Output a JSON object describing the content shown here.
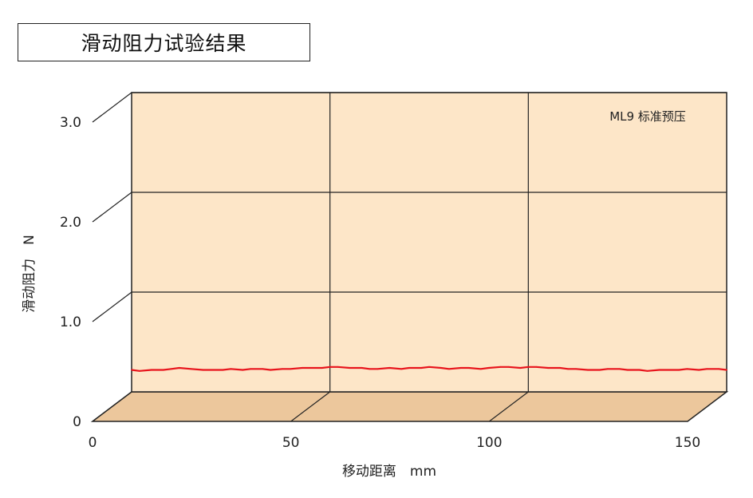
{
  "chart_data": {
    "type": "line",
    "title": "滑动阻力试验结果",
    "annotation": "ML9 标准预压",
    "xlabel": "移动距离　mm",
    "ylabel": "滑动阻力　N",
    "xlim": [
      0,
      150
    ],
    "ylim": [
      0,
      3.0
    ],
    "x_ticks": [
      "0",
      "50",
      "100",
      "150"
    ],
    "y_ticks": [
      "0",
      "1.0",
      "2.0",
      "3.0"
    ],
    "grid": true,
    "series": [
      {
        "color": "#e8141c",
        "x": [
          0,
          2,
          5,
          8,
          10,
          12,
          15,
          18,
          20,
          23,
          25,
          28,
          30,
          33,
          35,
          38,
          40,
          43,
          45,
          48,
          50,
          52,
          55,
          58,
          60,
          62,
          65,
          68,
          70,
          73,
          75,
          78,
          80,
          83,
          85,
          88,
          90,
          93,
          95,
          98,
          100,
          102,
          105,
          108,
          110,
          112,
          115,
          118,
          120,
          123,
          125,
          128,
          130,
          133,
          135,
          138,
          140,
          143,
          145,
          148,
          150
        ],
        "values": [
          0.22,
          0.21,
          0.22,
          0.22,
          0.23,
          0.24,
          0.23,
          0.22,
          0.22,
          0.22,
          0.23,
          0.22,
          0.23,
          0.23,
          0.22,
          0.23,
          0.23,
          0.24,
          0.24,
          0.24,
          0.25,
          0.25,
          0.24,
          0.24,
          0.23,
          0.23,
          0.24,
          0.23,
          0.24,
          0.24,
          0.25,
          0.24,
          0.23,
          0.24,
          0.24,
          0.23,
          0.24,
          0.25,
          0.25,
          0.24,
          0.25,
          0.25,
          0.24,
          0.24,
          0.23,
          0.23,
          0.22,
          0.22,
          0.23,
          0.23,
          0.22,
          0.22,
          0.21,
          0.22,
          0.22,
          0.22,
          0.23,
          0.22,
          0.23,
          0.23,
          0.22
        ]
      }
    ]
  }
}
